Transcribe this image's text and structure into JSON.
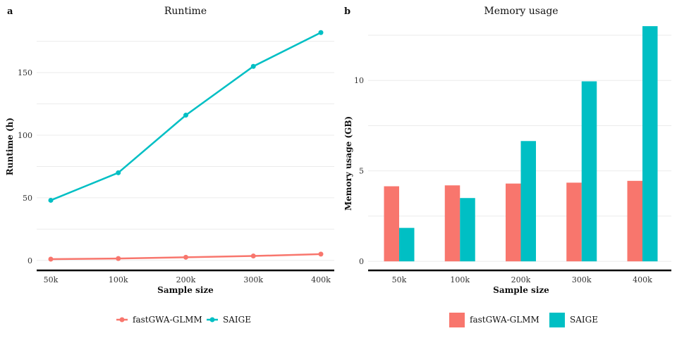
{
  "chart_data": [
    {
      "type": "line",
      "panel_label": "a",
      "title": "Runtime",
      "xlabel": "Sample size",
      "ylabel": "Runtime (h)",
      "categories": [
        "50k",
        "100k",
        "200k",
        "300k",
        "400k"
      ],
      "ylim": [
        -8,
        190
      ],
      "yticks": [
        0,
        50,
        100,
        150
      ],
      "grid": true,
      "legend_position": "bottom",
      "series": [
        {
          "name": "fastGWA-GLMM",
          "color": "#F8766D",
          "values": [
            1,
            1.5,
            2.5,
            3.5,
            5
          ]
        },
        {
          "name": "SAIGE",
          "color": "#00BFC4",
          "values": [
            48,
            70,
            116,
            155,
            182
          ]
        }
      ]
    },
    {
      "type": "bar",
      "panel_label": "b",
      "title": "Memory usage",
      "xlabel": "Sample size",
      "ylabel": "Memory usage (GB)",
      "categories": [
        "50k",
        "100k",
        "200k",
        "300k",
        "400k"
      ],
      "ylim": [
        -0.5,
        13.2
      ],
      "yticks": [
        0,
        5,
        10
      ],
      "grid": true,
      "legend_position": "bottom",
      "series": [
        {
          "name": "fastGWA-GLMM",
          "color": "#F8766D",
          "values": [
            4.15,
            4.2,
            4.3,
            4.35,
            4.45
          ]
        },
        {
          "name": "SAIGE",
          "color": "#00BFC4",
          "values": [
            1.85,
            3.5,
            6.65,
            9.95,
            13.0
          ]
        }
      ]
    }
  ]
}
